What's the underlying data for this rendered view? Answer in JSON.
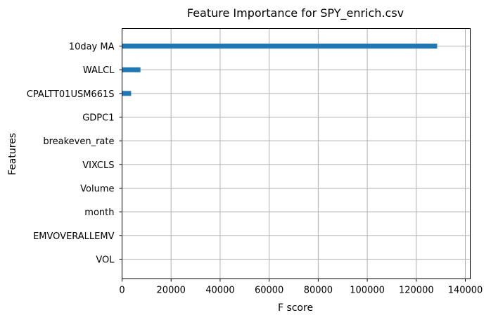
{
  "chart_data": {
    "type": "bar",
    "orientation": "horizontal",
    "title": "Feature Importance for SPY_enrich.csv",
    "xlabel": "F score",
    "ylabel": "Features",
    "categories": [
      "10day MA",
      "WALCL",
      "CPALTT01USM661S",
      "GDPC1",
      "breakeven_rate",
      "VIXCLS",
      "Volume",
      "month",
      "EMVOVERALLEMV",
      "VOL"
    ],
    "values": [
      128500,
      7500,
      3700,
      0,
      0,
      0,
      0,
      0,
      0,
      0
    ],
    "xlim": [
      0,
      142000
    ],
    "xticks": [
      0,
      20000,
      40000,
      60000,
      80000,
      100000,
      120000,
      140000
    ],
    "grid": true,
    "bar_color": "#1f77b4"
  }
}
